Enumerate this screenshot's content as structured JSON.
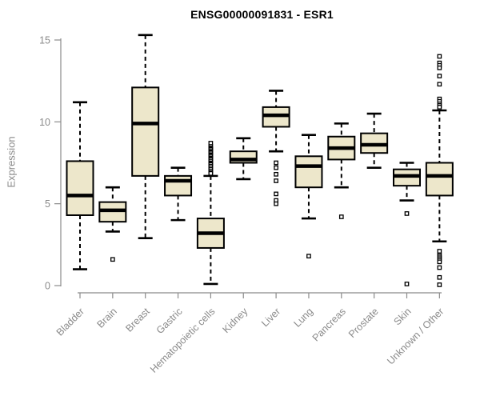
{
  "chart_data": {
    "type": "boxplot",
    "title": "ENSG00000091831 - ESR1",
    "xlabel": "",
    "ylabel": "Expression",
    "ylim": [
      0,
      15.4
    ],
    "yticks": [
      0,
      5,
      10,
      15
    ],
    "grid": false,
    "legend": "none",
    "boxes": [
      {
        "category": "Bladder",
        "low": 1.0,
        "q1": 4.3,
        "median": 5.5,
        "q3": 7.6,
        "high": 11.2,
        "outliers": []
      },
      {
        "category": "Brain",
        "low": 3.3,
        "q1": 3.9,
        "median": 4.6,
        "q3": 5.1,
        "high": 6.0,
        "outliers": [
          1.6
        ]
      },
      {
        "category": "Breast",
        "low": 2.9,
        "q1": 6.7,
        "median": 9.9,
        "q3": 12.1,
        "high": 15.3,
        "outliers": []
      },
      {
        "category": "Gastric",
        "low": 4.0,
        "q1": 5.5,
        "median": 6.4,
        "q3": 6.7,
        "high": 7.2,
        "outliers": []
      },
      {
        "category": "Hematopoietic cells",
        "low": 0.1,
        "q1": 2.3,
        "median": 3.2,
        "q3": 4.1,
        "high": 6.7,
        "outliers": [
          8.7,
          8.5,
          8.4,
          8.35,
          8.3,
          8.2,
          8.15,
          8.1,
          8.0,
          7.95,
          7.9,
          7.8,
          7.75,
          7.7,
          7.6,
          7.5,
          7.45,
          7.4,
          7.3,
          7.2,
          7.1,
          7.0,
          6.9,
          6.85
        ]
      },
      {
        "category": "Kidney",
        "low": 6.5,
        "q1": 7.5,
        "median": 7.7,
        "q3": 8.2,
        "high": 9.0,
        "outliers": []
      },
      {
        "category": "Liver",
        "low": 8.2,
        "q1": 9.7,
        "median": 10.4,
        "q3": 10.9,
        "high": 11.9,
        "outliers": [
          7.5,
          7.2,
          6.8,
          6.4,
          5.6,
          5.2,
          5.0
        ]
      },
      {
        "category": "Lung",
        "low": 4.1,
        "q1": 6.0,
        "median": 7.3,
        "q3": 7.9,
        "high": 9.2,
        "outliers": [
          1.8
        ]
      },
      {
        "category": "Pancreas",
        "low": 6.0,
        "q1": 7.7,
        "median": 8.4,
        "q3": 9.1,
        "high": 9.9,
        "outliers": [
          4.2
        ]
      },
      {
        "category": "Prostate",
        "low": 7.2,
        "q1": 8.1,
        "median": 8.6,
        "q3": 9.3,
        "high": 10.5,
        "outliers": []
      },
      {
        "category": "Skin",
        "low": 5.2,
        "q1": 6.1,
        "median": 6.7,
        "q3": 7.1,
        "high": 7.5,
        "outliers": [
          4.4,
          0.1
        ]
      },
      {
        "category": "Unknown / Other",
        "low": 2.7,
        "q1": 5.5,
        "median": 6.7,
        "q3": 7.5,
        "high": 10.7,
        "outliers": [
          14.0,
          13.6,
          13.45,
          13.3,
          12.8,
          12.3,
          11.4,
          11.25,
          11.1,
          11.0,
          10.9,
          2.1,
          1.85,
          1.75,
          1.65,
          1.55,
          1.45,
          1.1,
          0.5,
          0.05
        ]
      }
    ]
  },
  "colors": {
    "box_fill": "#EDE7CB",
    "box_border": "#000000",
    "median": "#000000",
    "axis": "#8B8B8B",
    "tick_label": "#8A8A8A",
    "title": "#000000",
    "background": "#FFFFFF"
  }
}
